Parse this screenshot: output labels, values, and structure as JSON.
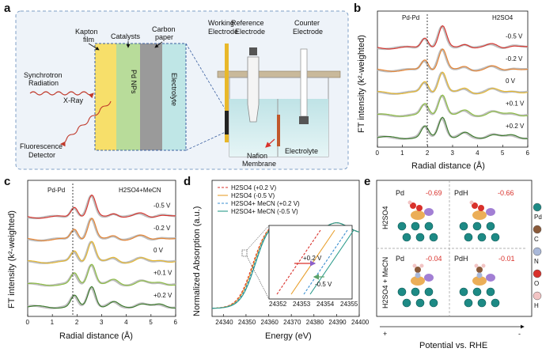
{
  "figure": {
    "panel_letters": [
      "a",
      "b",
      "c",
      "d",
      "e"
    ],
    "panel_a": {
      "labels": {
        "kapton": "Kapton",
        "film": "film",
        "catalysts": "Catalysts",
        "carbon": "Carbon",
        "paper": "paper",
        "pd_nps": "Pd NPs",
        "electrolyte_vertical": "Electrolyte",
        "synchrotron": "Synchrotron",
        "radiation": "Radiation",
        "xray": "X-Ray",
        "fluorescence": "Fluorescence",
        "detector": "Detector",
        "working": "Working",
        "working_electrode": "Electrode",
        "reference": "Reference",
        "reference_electrode": "Electrode",
        "counter": "Counter",
        "counter_electrode": "Electrode",
        "nafion": "Nafion",
        "membrane": "Membrane",
        "electrolyte": "Electrolyte"
      }
    },
    "panel_b": {
      "condition": "H2SO4",
      "peak_label": "Pd-Pd",
      "ylabel": "FT intensity (k²-weighted)",
      "xlabel": "Radial distance (Å)",
      "potentials": [
        "-0.5 V",
        "-0.2 V",
        "0 V",
        "+0.1 V",
        "+0.2 V"
      ],
      "colors": [
        "#d9312b",
        "#e8822e",
        "#e8b82a",
        "#8cbf3f",
        "#3a7a2a"
      ]
    },
    "panel_c": {
      "condition": "H2SO4+MeCN",
      "peak_label": "Pd-Pd",
      "ylabel": "FT intensity (k²-weighted)",
      "xlabel": "Radial distance (Å)",
      "potentials": [
        "-0.5 V",
        "-0.2 V",
        "0 V",
        "+0.1 V",
        "+0.2 V"
      ],
      "colors": [
        "#d9312b",
        "#e8822e",
        "#e8b82a",
        "#8cbf3f",
        "#3a7a2a"
      ]
    },
    "panel_d": {
      "ylabel": "Normalized Absorption (a.u.)",
      "xlabel": "Energy (eV)",
      "legend": [
        "H2SO4 (+0.2 V)",
        "H2SO4 (-0.5 V)",
        "H2SO4+ MeCN (+0.2 V)",
        "H2SO4+ MeCN (-0.5 V)"
      ],
      "inset_labels": [
        "+0.2 V",
        "-0.5 V"
      ],
      "colors": [
        "#d9312b",
        "#e8a02e",
        "#3a8fd0",
        "#2a9a8a"
      ]
    },
    "panel_e": {
      "cells": [
        {
          "label": "Pd",
          "value": "-0.69"
        },
        {
          "label": "PdH",
          "value": "-0.66"
        },
        {
          "label": "Pd",
          "value": "-0.04"
        },
        {
          "label": "PdH",
          "value": "-0.01"
        }
      ],
      "row_labels": [
        "H2SO4",
        "H2SO4 + MeCN"
      ],
      "legend": [
        "Pd",
        "C",
        "N",
        "O",
        "H"
      ],
      "xlabel": "Potential vs. RHE",
      "plus": "+",
      "minus": "-"
    }
  },
  "chart_data": [
    {
      "type": "line",
      "panel": "b",
      "xlim": [
        0,
        6
      ],
      "xticks": [
        "0",
        "1",
        "2",
        "3",
        "4",
        "5",
        "6"
      ],
      "series_names": [
        "-0.5 V",
        "-0.2 V",
        "0 V",
        "+0.1 V",
        "+0.2 V"
      ]
    },
    {
      "type": "line",
      "panel": "c",
      "xlim": [
        0,
        6
      ],
      "xticks": [
        "0",
        "1",
        "2",
        "3",
        "4",
        "5",
        "6"
      ],
      "series_names": [
        "-0.5 V",
        "-0.2 V",
        "0 V",
        "+0.1 V",
        "+0.2 V"
      ]
    },
    {
      "type": "line",
      "panel": "d",
      "xlim": [
        24335,
        24400
      ],
      "xticks": [
        "24340",
        "24350",
        "24360",
        "24370",
        "24380",
        "24390",
        "24400"
      ],
      "inset_xticks": [
        "24352",
        "24353",
        "24354",
        "24355"
      ]
    }
  ]
}
